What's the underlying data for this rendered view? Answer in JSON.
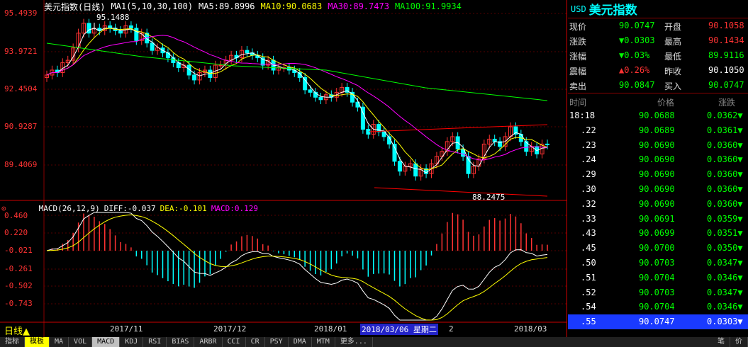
{
  "main": {
    "title": "美元指数(日线)",
    "ma_def": "MA1(5,10,30,100)",
    "ma5": "MA5:89.8996",
    "ma10": "MA10:90.0683",
    "ma30": "MA30:89.7473",
    "ma100": "MA100:91.9934",
    "y_ticks": [
      "95.4939",
      "93.9721",
      "92.4504",
      "90.9287",
      "89.4069"
    ],
    "high_label": "95.1488",
    "low_label": "88.2475"
  },
  "macd": {
    "def": "MACD(26,12,9)",
    "diff": "DIFF:-0.037",
    "dea": "DEA:-0.101",
    "macd": "MACD:0.129",
    "y_ticks": [
      "0.460",
      "0.220",
      "-0.021",
      "-0.261",
      "-0.502",
      "-0.743"
    ]
  },
  "x_axis": {
    "labels": [
      "2017/11",
      "2017/12",
      "2018/01",
      "2",
      "2018/03"
    ],
    "highlight_date": "2018/03/06",
    "highlight_day": "星期二"
  },
  "period_label": "日线▲",
  "tabs": [
    "指标",
    "模板",
    "MA",
    "VOL",
    "MACD",
    "KDJ",
    "RSI",
    "BIAS",
    "ARBR",
    "CCI",
    "CR",
    "PSY",
    "DMA",
    "MTM",
    "更多..."
  ],
  "right_tabs": [
    "笔",
    "价"
  ],
  "colors": {
    "up": "#ff3232",
    "down": "#00ffff",
    "ma5": "#ffffff",
    "ma10": "#ffff00",
    "ma30": "#ff00ff",
    "ma100": "#00ff00",
    "trend": "#ff0000"
  },
  "quote": {
    "code": "USD",
    "name": "美元指数",
    "rows": [
      {
        "l1": "现价",
        "v1": "90.0747",
        "c1": "#0f0",
        "l2": "开盘",
        "v2": "90.1058",
        "c2": "#f33"
      },
      {
        "l1": "涨跌",
        "v1": "▼0.0303",
        "c1": "#0f0",
        "l2": "最高",
        "v2": "90.1434",
        "c2": "#f33"
      },
      {
        "l1": "涨幅",
        "v1": "▼0.03%",
        "c1": "#0f0",
        "l2": "最低",
        "v2": "89.9116",
        "c2": "#0f0"
      },
      {
        "l1": "震幅",
        "v1": "▲0.26%",
        "c1": "#f33",
        "l2": "昨收",
        "v2": "90.1050",
        "c2": "#fff"
      },
      {
        "l1": "卖出",
        "v1": "90.0847",
        "c1": "#0f0",
        "l2": "买入",
        "v2": "90.0747",
        "c2": "#0f0"
      }
    ],
    "tick_headers": [
      "时间",
      "价格",
      "涨跌"
    ],
    "ticks": [
      {
        "t": "18:18",
        "p": "90.0688",
        "c": "0.0362▼"
      },
      {
        "t": ".22",
        "p": "90.0689",
        "c": "0.0361▼"
      },
      {
        "t": ".23",
        "p": "90.0690",
        "c": "0.0360▼"
      },
      {
        "t": ".24",
        "p": "90.0690",
        "c": "0.0360▼"
      },
      {
        "t": ".29",
        "p": "90.0690",
        "c": "0.0360▼"
      },
      {
        "t": ".30",
        "p": "90.0690",
        "c": "0.0360▼"
      },
      {
        "t": ".32",
        "p": "90.0690",
        "c": "0.0360▼"
      },
      {
        "t": ".33",
        "p": "90.0691",
        "c": "0.0359▼"
      },
      {
        "t": ".43",
        "p": "90.0699",
        "c": "0.0351▼"
      },
      {
        "t": ".45",
        "p": "90.0700",
        "c": "0.0350▼"
      },
      {
        "t": ".50",
        "p": "90.0703",
        "c": "0.0347▼"
      },
      {
        "t": ".51",
        "p": "90.0704",
        "c": "0.0346▼"
      },
      {
        "t": ".52",
        "p": "90.0703",
        "c": "0.0347▼"
      },
      {
        "t": ".54",
        "p": "90.0704",
        "c": "0.0346▼"
      },
      {
        "t": ".55",
        "p": "90.0747",
        "c": "0.0303▼"
      }
    ]
  },
  "chart_data": {
    "type": "line",
    "candles_close": [
      92.9,
      93.1,
      93.0,
      93.4,
      93.5,
      94.0,
      94.6,
      95.0,
      94.6,
      94.8,
      94.7,
      94.9,
      94.8,
      94.7,
      94.6,
      94.9,
      94.8,
      94.3,
      94.6,
      94.2,
      93.9,
      94.0,
      93.8,
      93.6,
      93.4,
      93.2,
      93.3,
      92.9,
      92.7,
      93.0,
      93.1,
      92.8,
      93.3,
      93.3,
      93.5,
      93.7,
      93.6,
      93.9,
      93.8,
      93.7,
      93.6,
      93.3,
      93.5,
      93.1,
      93.2,
      93.2,
      93.1,
      93.0,
      92.8,
      92.3,
      92.2,
      92.0,
      91.9,
      92.1,
      92.0,
      92.2,
      92.4,
      92.2,
      91.8,
      91.6,
      90.7,
      90.5,
      90.9,
      90.6,
      90.4,
      90.1,
      89.4,
      89.0,
      89.2,
      89.3,
      88.8,
      89.1,
      88.9,
      89.3,
      89.6,
      89.8,
      90.2,
      90.4,
      89.9,
      89.6,
      88.9,
      89.2,
      89.5,
      90.1,
      90.3,
      90.2,
      90.0,
      90.4,
      90.8,
      90.5,
      90.2,
      89.8,
      90.0,
      89.7,
      90.1,
      90.07
    ],
    "trend_upper": [
      [
        90.3
      ],
      [
        90.9
      ]
    ],
    "trend_lower": [
      [
        88.6
      ],
      [
        88.0
      ]
    ]
  }
}
